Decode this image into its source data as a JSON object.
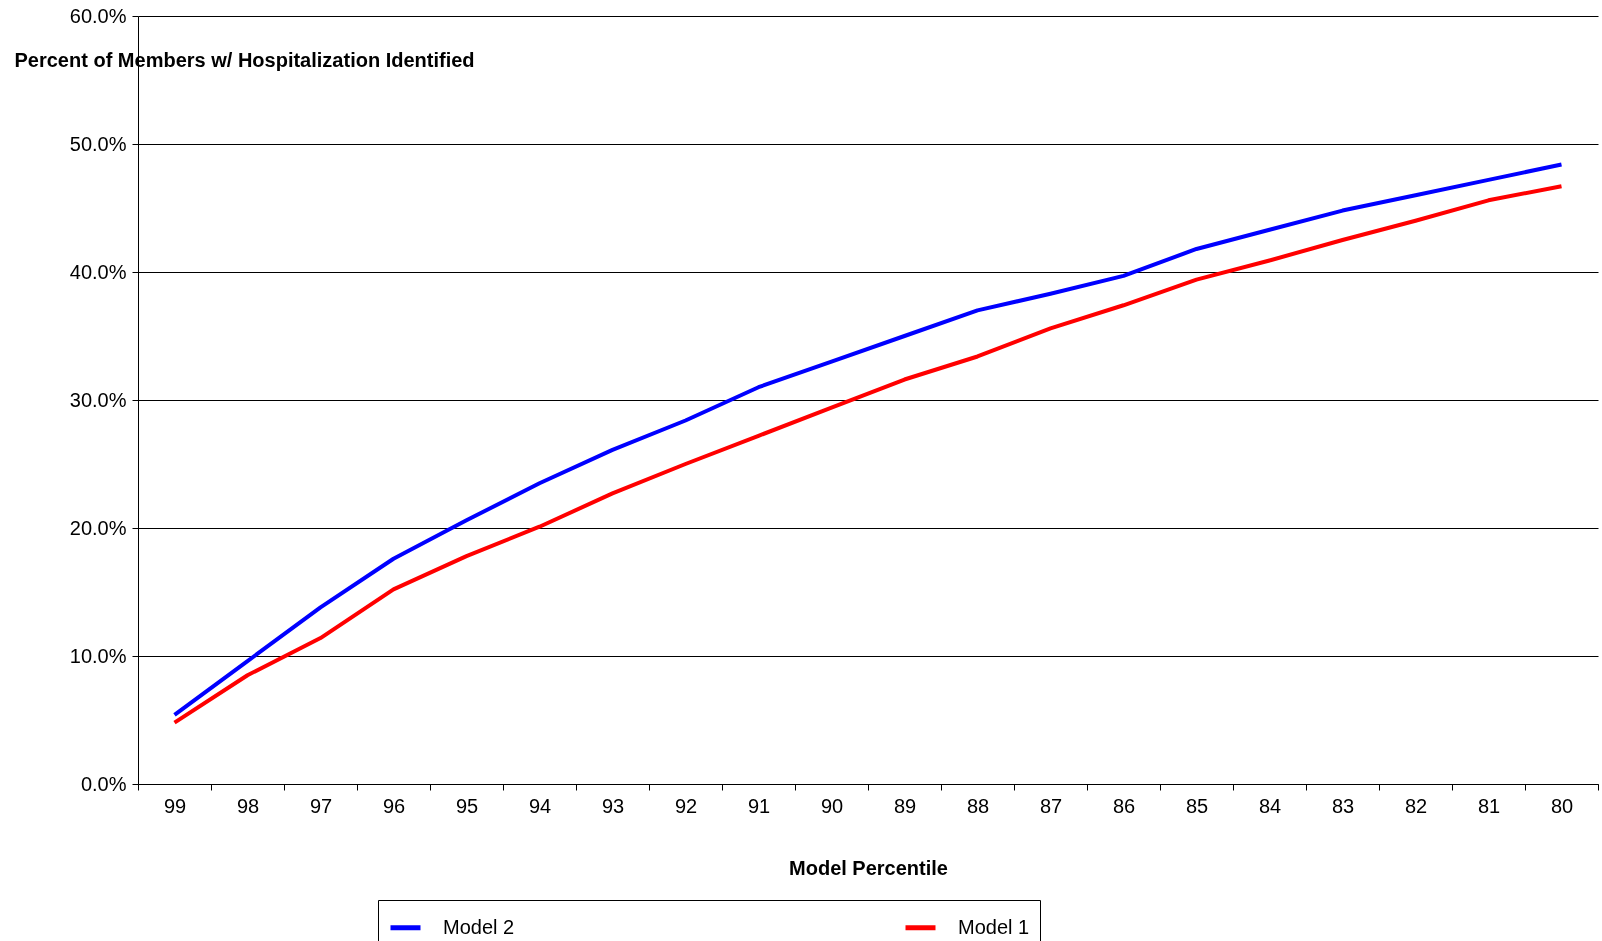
{
  "chart_data": {
    "type": "line",
    "xlabel": "Model Percentile",
    "ylabel": "Percent of Members w/ Hospitalization Identified",
    "categories": [
      "99",
      "98",
      "97",
      "96",
      "95",
      "94",
      "93",
      "92",
      "91",
      "90",
      "89",
      "88",
      "87",
      "86",
      "85",
      "84",
      "83",
      "82",
      "81",
      "80"
    ],
    "series": [
      {
        "name": "Model 2",
        "color": "#0000ff",
        "values": [
          5.4,
          9.6,
          13.8,
          17.6,
          20.6,
          23.5,
          26.1,
          28.4,
          31.0,
          33.0,
          35.0,
          37.0,
          38.3,
          39.7,
          41.8,
          43.3,
          44.8,
          46.0,
          47.2,
          48.4
        ]
      },
      {
        "name": "Model 1",
        "color": "#ff0000",
        "values": [
          4.8,
          8.5,
          11.4,
          15.2,
          17.8,
          20.1,
          22.7,
          25.0,
          27.2,
          29.4,
          31.6,
          33.4,
          35.6,
          37.4,
          39.4,
          40.9,
          42.5,
          44.0,
          45.6,
          46.7
        ]
      }
    ],
    "ylim": [
      0,
      60
    ],
    "yticks": [
      {
        "value": 0,
        "label": "0.0%"
      },
      {
        "value": 10,
        "label": "10.0%"
      },
      {
        "value": 20,
        "label": "20.0%"
      },
      {
        "value": 30,
        "label": "30.0%"
      },
      {
        "value": 40,
        "label": "40.0%"
      },
      {
        "value": 50,
        "label": "50.0%"
      },
      {
        "value": 60,
        "label": "60.0%"
      }
    ],
    "grid": "y",
    "legend": "bottom",
    "marker": "none",
    "line_style": "solid"
  }
}
